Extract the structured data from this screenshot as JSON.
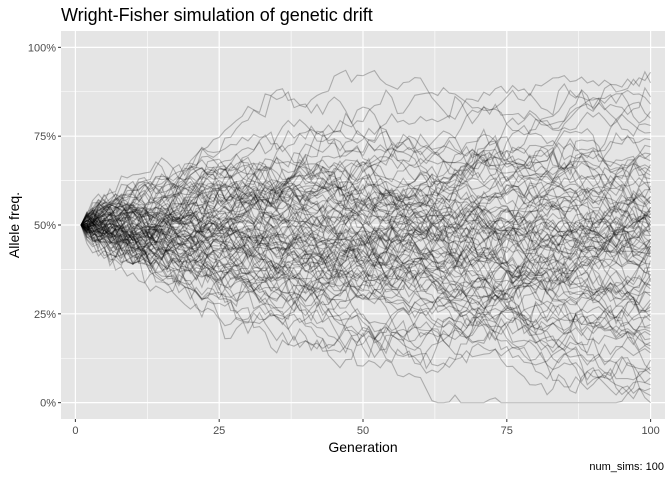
{
  "chart_data": {
    "type": "line",
    "title": "Wright-Fisher simulation of genetic drift",
    "xlabel": "Generation",
    "ylabel": "Allele freq.",
    "caption": "num_sims: 100",
    "xlim": [
      -2.5,
      102.5
    ],
    "ylim": [
      -0.046,
      1.046
    ],
    "x_ticks": [
      0,
      25,
      50,
      75,
      100
    ],
    "x_tick_labels": [
      "0",
      "25",
      "50",
      "75",
      "100"
    ],
    "y_ticks": [
      0,
      0.25,
      0.5,
      0.75,
      1.0
    ],
    "y_tick_labels": [
      "0%",
      "25%",
      "50%",
      "75%",
      "100%"
    ],
    "grid": true,
    "legend": "none",
    "num_series": 100,
    "generations": [
      1,
      100
    ],
    "start_value": 0.5,
    "series_color": "#000000",
    "series_alpha": 0.25,
    "panel_background": "#e5e5e5",
    "grid_color": "#ffffff",
    "series_end_values": [
      0.93,
      0.9,
      0.86,
      0.84,
      0.82,
      0.8,
      0.78,
      0.76,
      0.74,
      0.72,
      0.7,
      0.68,
      0.67,
      0.66,
      0.64,
      0.63,
      0.62,
      0.61,
      0.6,
      0.59,
      0.58,
      0.57,
      0.56,
      0.56,
      0.55,
      0.55,
      0.54,
      0.54,
      0.53,
      0.53,
      0.52,
      0.52,
      0.51,
      0.51,
      0.5,
      0.5,
      0.49,
      0.49,
      0.48,
      0.48,
      0.47,
      0.47,
      0.46,
      0.46,
      0.45,
      0.45,
      0.44,
      0.44,
      0.43,
      0.43,
      0.42,
      0.42,
      0.41,
      0.41,
      0.4,
      0.39,
      0.38,
      0.37,
      0.36,
      0.35,
      0.34,
      0.33,
      0.32,
      0.31,
      0.3,
      0.29,
      0.28,
      0.27,
      0.26,
      0.25,
      0.24,
      0.23,
      0.22,
      0.21,
      0.2,
      0.19,
      0.18,
      0.17,
      0.16,
      0.15,
      0.14,
      0.12,
      0.1,
      0.09,
      0.08,
      0.07,
      0.05,
      0.04,
      0.02,
      0.0,
      0.58,
      0.6,
      0.5,
      0.46,
      0.36,
      0.7,
      0.65,
      0.52,
      0.44,
      0.33
    ]
  }
}
